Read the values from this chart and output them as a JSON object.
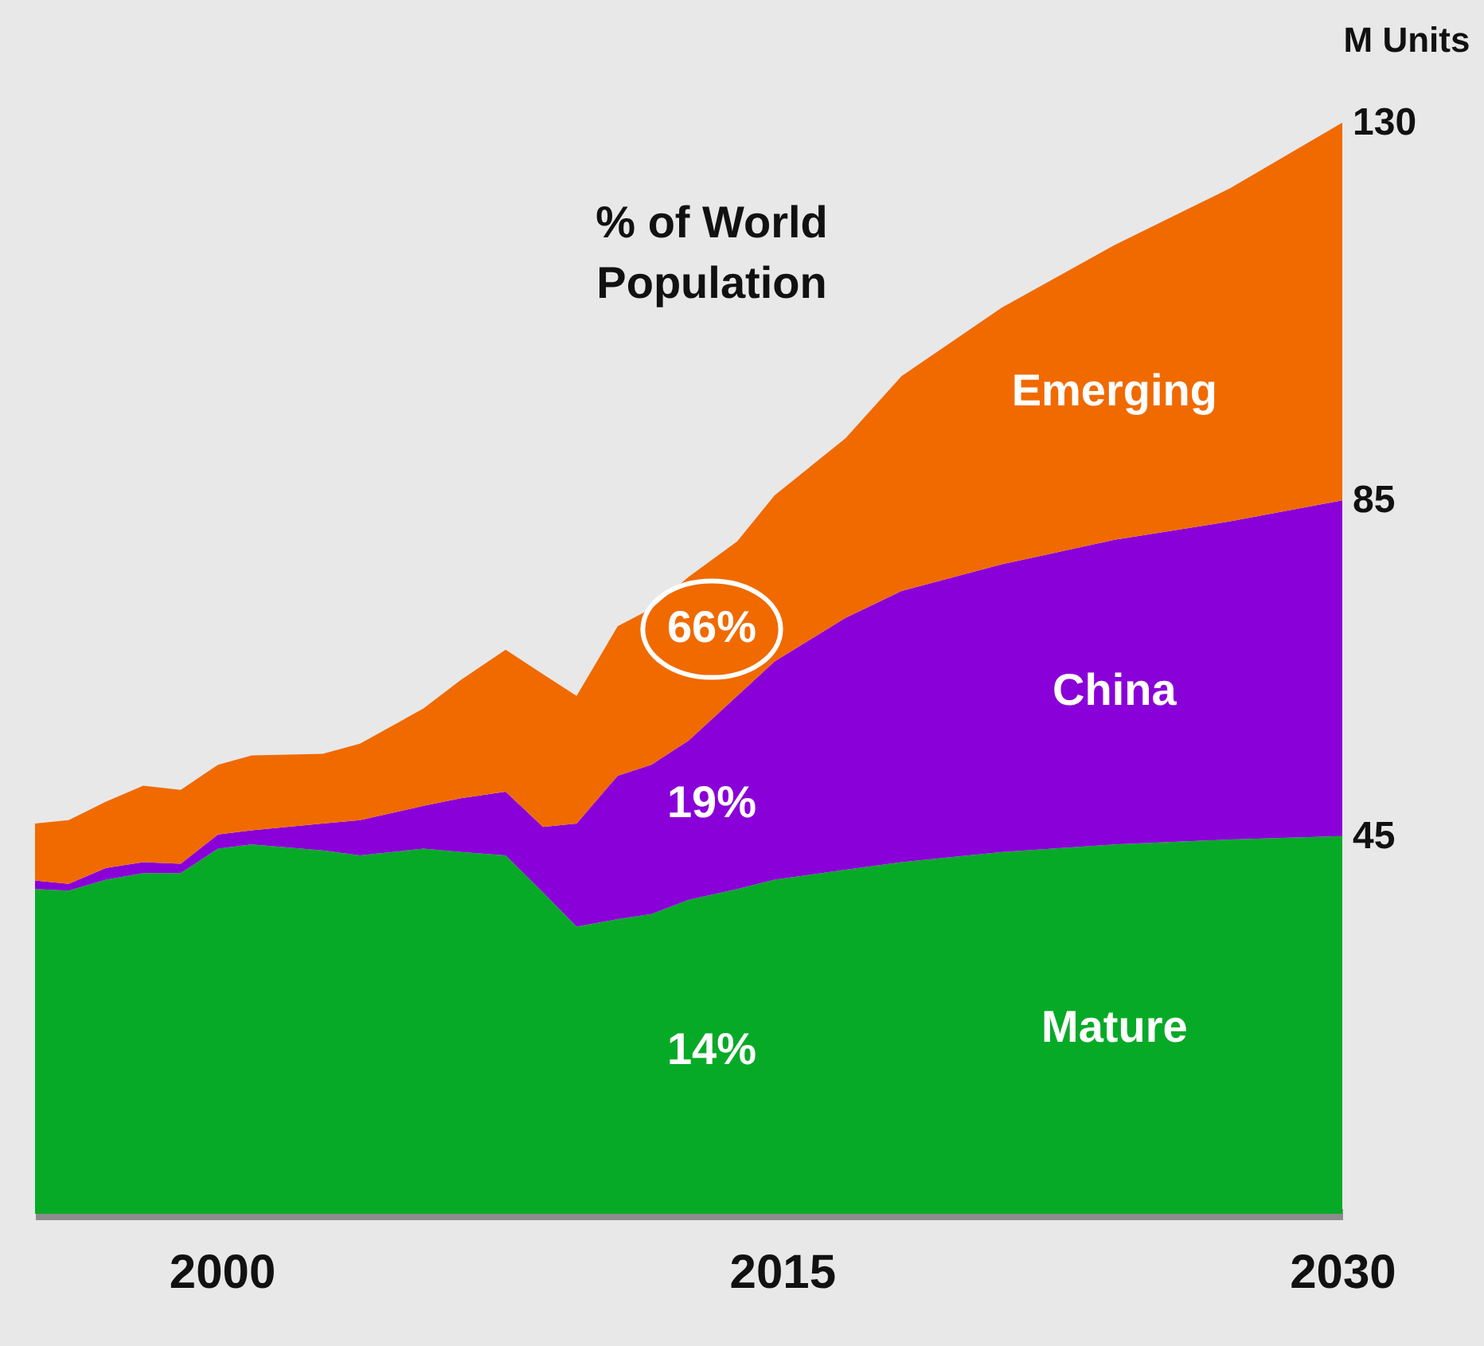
{
  "chart_data": {
    "type": "area",
    "stacked": true,
    "x": [
      1995,
      1995.9,
      1996.9,
      1997.9,
      1998.9,
      1999.9,
      2000.8,
      2002.7,
      2003.7,
      2005.4,
      2006.4,
      2007.6,
      2008.6,
      2009.5,
      2010.6,
      2011.5,
      2012.5,
      2013.8,
      2014.8,
      2016.7,
      2018.2,
      2020.9,
      2023.9,
      2027.0,
      2030
    ],
    "series": [
      {
        "name": "Mature",
        "color": "#07aa27",
        "values": [
          38.7,
          38.5,
          39.8,
          40.6,
          40.6,
          43.5,
          44.0,
          43.3,
          42.7,
          43.5,
          43.1,
          42.7,
          38.3,
          34.2,
          35.1,
          35.7,
          37.4,
          38.7,
          39.8,
          41.0,
          41.9,
          43.1,
          44.0,
          44.6,
          45.0
        ]
      },
      {
        "name": "China",
        "color": "#8a00d8",
        "values": [
          1.0,
          0.8,
          1.4,
          1.3,
          1.1,
          1.7,
          1.7,
          3.2,
          4.2,
          5.1,
          6.4,
          7.6,
          7.8,
          12.3,
          17.1,
          17.8,
          19.0,
          23.0,
          26.0,
          30.0,
          32.3,
          34.3,
          36.3,
          37.9,
          40.0
        ]
      },
      {
        "name": "Emerging",
        "color": "#f06a00",
        "values": [
          6.8,
          7.6,
          7.9,
          9.1,
          8.8,
          8.3,
          8.9,
          8.3,
          9.1,
          11.6,
          14.1,
          16.9,
          18.2,
          15.2,
          17.8,
          18.6,
          19.5,
          18.4,
          19.8,
          21.4,
          25.6,
          30.6,
          35.1,
          39.7,
          45.0
        ]
      }
    ],
    "xlim": [
      1995,
      2030
    ],
    "xticks": [
      2000,
      2015,
      2030
    ],
    "ylim": [
      0,
      130
    ],
    "yticks": [
      45,
      85,
      130
    ],
    "ylabel": "M Units",
    "annotations": [
      "% of World Population",
      "66%",
      "19%",
      "14%"
    ],
    "grid": false
  }
}
